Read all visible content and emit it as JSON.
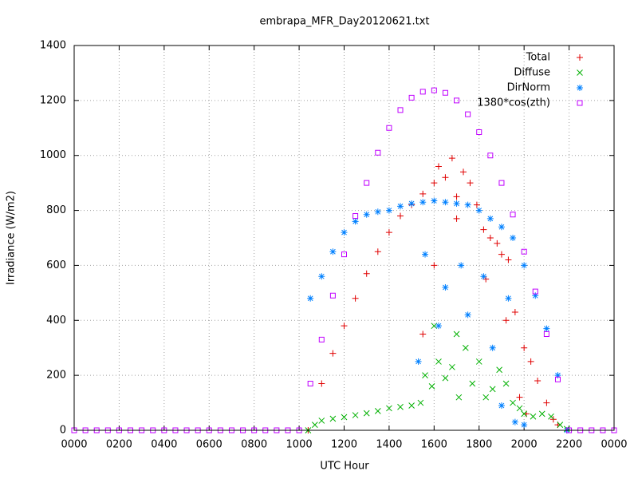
{
  "chart_data": {
    "type": "scatter",
    "title": "embrapa_MFR_Day20120621.txt",
    "x_label": "UTC Hour",
    "y_label": "Irradiance (W/m2)",
    "xlim": [
      0,
      24
    ],
    "ylim": [
      0,
      1400
    ],
    "xticks": [
      {
        "value": 0,
        "label": "0000"
      },
      {
        "value": 2,
        "label": "0200"
      },
      {
        "value": 4,
        "label": "0400"
      },
      {
        "value": 6,
        "label": "0600"
      },
      {
        "value": 8,
        "label": "0800"
      },
      {
        "value": 10,
        "label": "1000"
      },
      {
        "value": 12,
        "label": "1200"
      },
      {
        "value": 14,
        "label": "1400"
      },
      {
        "value": 16,
        "label": "1600"
      },
      {
        "value": 18,
        "label": "1800"
      },
      {
        "value": 20,
        "label": "2000"
      },
      {
        "value": 22,
        "label": "2200"
      },
      {
        "value": 24,
        "label": "0000"
      }
    ],
    "yticks": [
      0,
      200,
      400,
      600,
      800,
      1000,
      1200,
      1400
    ],
    "grid": true,
    "legend": "top-right",
    "series": [
      {
        "name": "Total",
        "color": "#e00000",
        "marker": "plus",
        "x": [
          10.4,
          11,
          11.5,
          12,
          12.5,
          13,
          13.5,
          14,
          14.5,
          15,
          15.5,
          16,
          16.2,
          16.5,
          16.8,
          17,
          17.3,
          17.6,
          17.9,
          18.2,
          18.5,
          18.8,
          19,
          19.3,
          19.6,
          20,
          20.3,
          20.6,
          21,
          21.3,
          21.5,
          15.5,
          16,
          17,
          18.3,
          19.2,
          19.8,
          20.1
        ],
        "values": [
          0,
          170,
          280,
          380,
          480,
          570,
          650,
          720,
          780,
          820,
          860,
          900,
          960,
          920,
          990,
          850,
          940,
          900,
          820,
          730,
          700,
          680,
          640,
          620,
          430,
          300,
          250,
          180,
          100,
          40,
          20,
          350,
          600,
          770,
          550,
          400,
          120,
          60
        ]
      },
      {
        "name": "Diffuse",
        "color": "#00b000",
        "marker": "cross",
        "x": [
          10.4,
          10.7,
          11,
          11.5,
          12,
          12.5,
          13,
          13.5,
          14,
          14.5,
          15,
          15.4,
          15.6,
          15.9,
          16.2,
          16.5,
          16.8,
          17.1,
          17.4,
          17.7,
          18,
          18.3,
          18.6,
          18.9,
          19.2,
          19.5,
          19.8,
          20,
          20.4,
          20.8,
          21.2,
          21.6,
          21.9,
          16,
          17
        ],
        "values": [
          0,
          20,
          35,
          42,
          48,
          55,
          62,
          70,
          80,
          85,
          90,
          100,
          200,
          160,
          250,
          190,
          230,
          120,
          300,
          170,
          250,
          120,
          150,
          220,
          170,
          100,
          80,
          60,
          50,
          60,
          50,
          20,
          5,
          380,
          350
        ]
      },
      {
        "name": "DirNorm",
        "color": "#0080ff",
        "marker": "star",
        "x": [
          10.5,
          11,
          11.5,
          12,
          12.5,
          13,
          13.5,
          14,
          14.5,
          15,
          15.5,
          16,
          16.5,
          17,
          17.5,
          18,
          18.5,
          19,
          19.5,
          20,
          20.5,
          21,
          21.5,
          21.9,
          15.3,
          15.6,
          16.2,
          16.5,
          17.2,
          17.5,
          18.2,
          18.6,
          19,
          19.6,
          20,
          19.3
        ],
        "values": [
          480,
          560,
          650,
          720,
          760,
          785,
          795,
          800,
          815,
          825,
          830,
          835,
          830,
          825,
          820,
          800,
          770,
          740,
          700,
          600,
          490,
          370,
          200,
          0,
          250,
          640,
          380,
          520,
          600,
          420,
          560,
          300,
          90,
          30,
          20,
          480
        ]
      },
      {
        "name": "1380*cos(zth)",
        "color": "#c000ff",
        "marker": "square",
        "x": [
          0,
          0.5,
          1,
          1.5,
          2,
          2.5,
          3,
          3.5,
          4,
          4.5,
          5,
          5.5,
          6,
          6.5,
          7,
          7.5,
          8,
          8.5,
          9,
          9.5,
          10,
          10.5,
          11,
          11.5,
          12,
          12.5,
          13,
          13.5,
          14,
          14.5,
          15,
          15.5,
          16,
          16.5,
          17,
          17.5,
          18,
          18.5,
          19,
          19.5,
          20,
          20.5,
          21,
          21.5,
          22,
          22.5,
          23,
          23.5,
          24
        ],
        "values": [
          0,
          0,
          0,
          0,
          0,
          0,
          0,
          0,
          0,
          0,
          0,
          0,
          0,
          0,
          0,
          0,
          0,
          0,
          0,
          0,
          0,
          170,
          330,
          490,
          640,
          780,
          900,
          1010,
          1100,
          1165,
          1210,
          1232,
          1237,
          1228,
          1200,
          1150,
          1085,
          1000,
          900,
          785,
          650,
          505,
          350,
          185,
          0,
          0,
          0,
          0,
          0
        ]
      }
    ]
  }
}
